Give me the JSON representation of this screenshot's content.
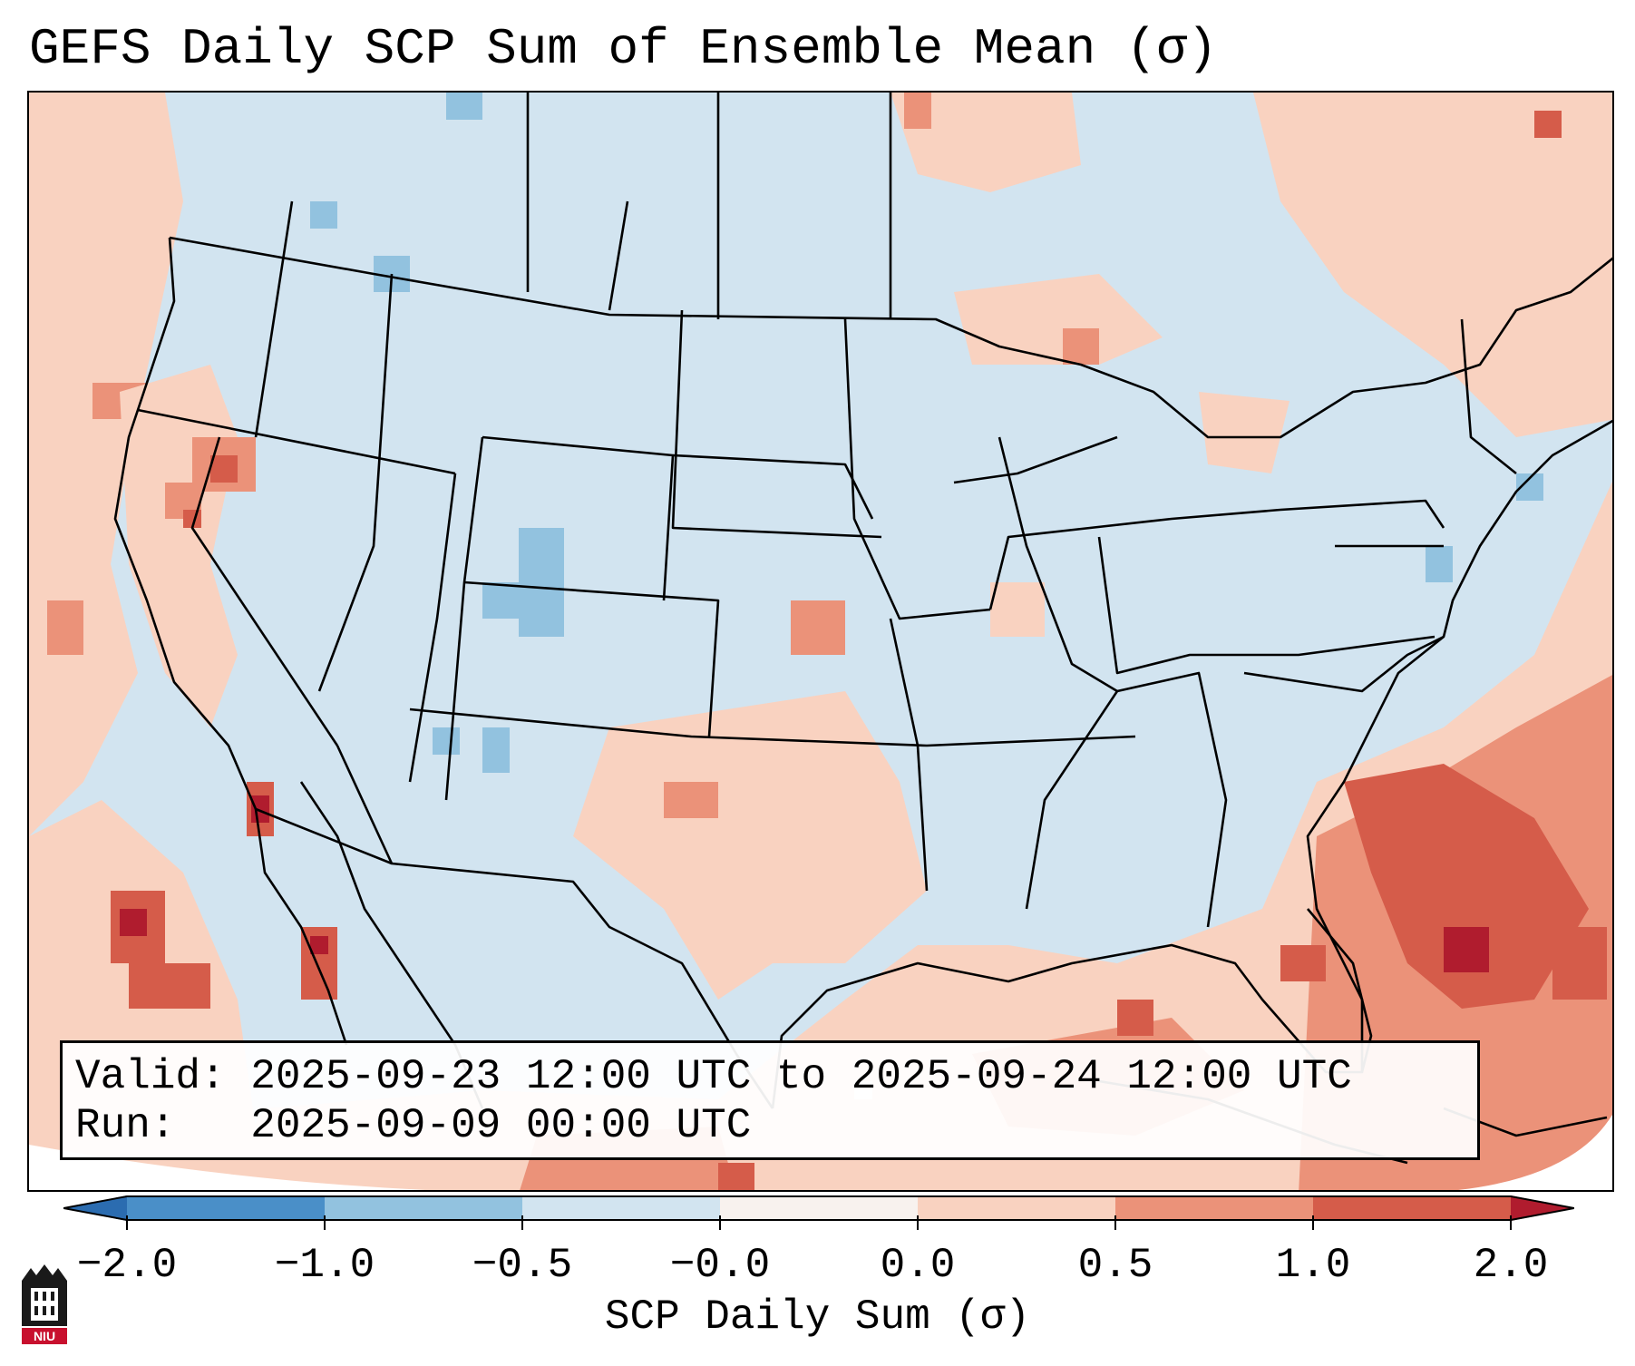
{
  "title": "GEFS Daily SCP Sum of Ensemble Mean (σ)",
  "valid_line": "Valid: 2025-09-23 12:00 UTC to 2025-09-24 12:00 UTC",
  "run_line": "Run:   2025-09-09 00:00 UTC",
  "colorbar": {
    "label": "SCP Daily Sum (σ)",
    "ticks": [
      "−2.0",
      "−1.0",
      "−0.5",
      "−0.0",
      "0.0",
      "0.5",
      "1.0",
      "2.0"
    ],
    "colors": [
      "#2b6cb0",
      "#4a8fc8",
      "#92c2df",
      "#d2e4f0",
      "#f8f2ee",
      "#f9d2c0",
      "#eb9279",
      "#d55c4a",
      "#b01c2e"
    ]
  },
  "logo_text": "NIU",
  "map": {
    "background_color": "#d2e4f0",
    "ocean_positive_color": "#f9d2c0",
    "strong_positive_color": "#eb9279",
    "very_strong_color": "#d55c4a",
    "negative_color": "#92c2df"
  }
}
